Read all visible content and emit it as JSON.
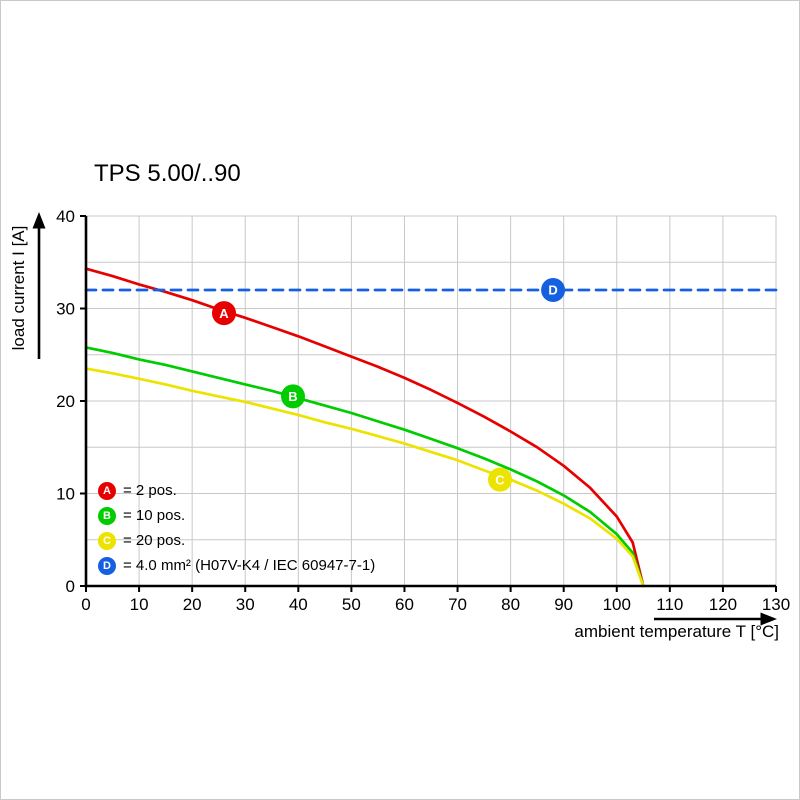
{
  "chart_data": {
    "type": "line",
    "title": "TPS 5.00/..90",
    "xlabel": "ambient temperature T [°C]",
    "ylabel": "load current I [A]",
    "xlim": [
      0,
      130
    ],
    "ylim": [
      0,
      40
    ],
    "xticks": [
      0,
      10,
      20,
      30,
      40,
      50,
      60,
      70,
      80,
      90,
      100,
      110,
      120,
      130
    ],
    "yticks": [
      0,
      10,
      20,
      30,
      40
    ],
    "grid": {
      "x_step": 10,
      "y_step": 5,
      "color": "#c8c8c8"
    },
    "axis_color": "#000000",
    "legend_position": "bottom-left-inside",
    "series": [
      {
        "id": "A",
        "legend": "= 2 pos.",
        "color": "#e60000",
        "dash": false,
        "marker": {
          "x": 26,
          "y": 29.5
        },
        "points": [
          [
            0,
            34.3
          ],
          [
            5,
            33.5
          ],
          [
            10,
            32.6
          ],
          [
            15,
            31.8
          ],
          [
            20,
            30.9
          ],
          [
            25,
            29.9
          ],
          [
            30,
            29.0
          ],
          [
            35,
            28.0
          ],
          [
            40,
            27.0
          ],
          [
            45,
            25.9
          ],
          [
            50,
            24.8
          ],
          [
            55,
            23.7
          ],
          [
            60,
            22.5
          ],
          [
            65,
            21.2
          ],
          [
            70,
            19.8
          ],
          [
            75,
            18.3
          ],
          [
            80,
            16.7
          ],
          [
            85,
            15.0
          ],
          [
            90,
            13.0
          ],
          [
            95,
            10.6
          ],
          [
            100,
            7.5
          ],
          [
            103,
            4.7
          ],
          [
            105,
            0
          ]
        ]
      },
      {
        "id": "B",
        "legend": "= 10 pos.",
        "color": "#00cc00",
        "dash": false,
        "marker": {
          "x": 39,
          "y": 20.5
        },
        "points": [
          [
            0,
            25.8
          ],
          [
            5,
            25.2
          ],
          [
            10,
            24.5
          ],
          [
            15,
            23.9
          ],
          [
            20,
            23.2
          ],
          [
            25,
            22.5
          ],
          [
            30,
            21.8
          ],
          [
            35,
            21.1
          ],
          [
            40,
            20.3
          ],
          [
            45,
            19.5
          ],
          [
            50,
            18.7
          ],
          [
            55,
            17.8
          ],
          [
            60,
            16.9
          ],
          [
            65,
            15.9
          ],
          [
            70,
            14.9
          ],
          [
            75,
            13.8
          ],
          [
            80,
            12.6
          ],
          [
            85,
            11.3
          ],
          [
            90,
            9.8
          ],
          [
            95,
            8.0
          ],
          [
            100,
            5.6
          ],
          [
            103,
            3.6
          ],
          [
            105,
            0
          ]
        ]
      },
      {
        "id": "C",
        "legend": "= 20 pos.",
        "color": "#ece300",
        "dash": false,
        "marker": {
          "x": 78,
          "y": 11.5
        },
        "points": [
          [
            0,
            23.5
          ],
          [
            5,
            23.0
          ],
          [
            10,
            22.4
          ],
          [
            15,
            21.8
          ],
          [
            20,
            21.1
          ],
          [
            25,
            20.5
          ],
          [
            30,
            19.9
          ],
          [
            35,
            19.2
          ],
          [
            40,
            18.5
          ],
          [
            45,
            17.7
          ],
          [
            50,
            17.0
          ],
          [
            55,
            16.2
          ],
          [
            60,
            15.4
          ],
          [
            65,
            14.5
          ],
          [
            70,
            13.6
          ],
          [
            75,
            12.5
          ],
          [
            80,
            11.5
          ],
          [
            85,
            10.3
          ],
          [
            90,
            8.9
          ],
          [
            95,
            7.3
          ],
          [
            100,
            5.1
          ],
          [
            103,
            3.2
          ],
          [
            105,
            0
          ]
        ]
      },
      {
        "id": "D",
        "legend": "= 4.0 mm² (H07V-K4 / IEC 60947-7-1)",
        "color": "#1560e0",
        "dash": true,
        "marker": {
          "x": 88,
          "y": 32
        },
        "points": [
          [
            0,
            32
          ],
          [
            130,
            32
          ]
        ]
      }
    ]
  }
}
